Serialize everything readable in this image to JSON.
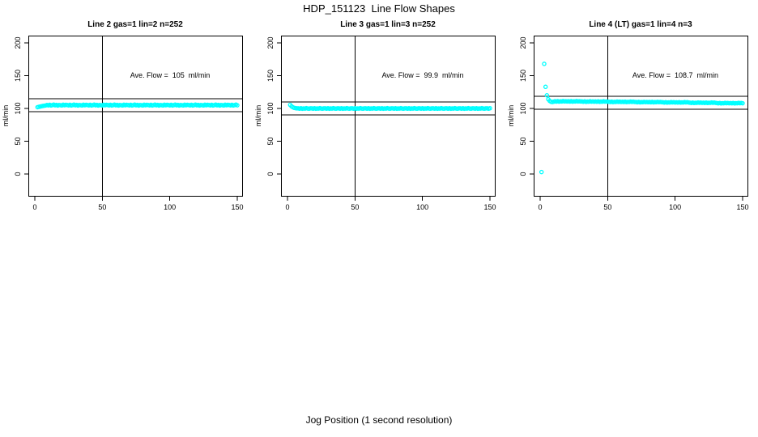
{
  "title": "HDP_151123  Line Flow Shapes",
  "xlabel": "Jog Position (1 second resolution)",
  "chart_data": {
    "type": "scatter",
    "title": "HDP_151123  Line Flow Shapes",
    "xlabel": "Jog Position (1 second resolution)",
    "ylabel": "ml/min",
    "xlim": [
      0,
      150
    ],
    "ylim": [
      0,
      200
    ],
    "x_ticks": [
      0,
      50,
      100,
      150
    ],
    "y_ticks": [
      0,
      50,
      100,
      150,
      200
    ],
    "grid": false,
    "point_color": "#00ffff",
    "line_color": "#000000",
    "vline_x": 50,
    "panels": [
      {
        "name": "line2",
        "title": "Line 2 gas=1 lin=2 n=252",
        "annotation": "Ave. Flow =  105  ml/min",
        "ave_flow_ml_min": 105,
        "n": 252,
        "gas": 1,
        "lin": 2,
        "ref_lines": [
          115,
          95
        ],
        "outliers": [],
        "band": {
          "x_start": 2,
          "x_step": 1,
          "y": [
            101.9,
            102.4,
            102.9,
            103.4,
            103.8,
            104.2,
            104.5,
            105.2,
            104.7,
            105.6,
            104.5,
            105.1,
            105.8,
            104.8,
            105.4,
            104.4,
            105.3,
            105.0,
            104.6,
            105.7,
            104.9,
            105.5,
            105.2,
            104.7,
            105.6,
            104.5,
            105.1,
            105.8,
            104.8,
            105.4,
            104.4,
            105.3,
            105.0,
            104.6,
            105.7,
            104.9,
            105.5,
            105.2,
            104.7,
            105.6,
            104.5,
            105.1,
            105.8,
            104.8,
            105.4,
            104.4,
            105.3,
            105.0,
            104.6,
            105.7,
            104.9,
            105.5,
            105.2,
            104.7,
            105.6,
            104.5,
            105.1,
            105.8,
            104.8,
            105.4,
            104.4,
            105.3,
            105.0,
            104.6,
            105.7,
            104.9,
            105.5,
            105.2,
            104.7,
            105.6,
            104.5,
            105.1,
            105.8,
            104.8,
            105.4,
            104.4,
            105.3,
            105.0,
            104.6,
            105.7,
            104.9,
            105.5,
            105.2,
            104.7,
            105.6,
            104.5,
            105.1,
            105.8,
            104.8,
            105.4,
            104.4,
            105.3,
            105.0,
            104.6,
            105.7,
            104.9,
            105.5,
            105.2,
            104.7,
            105.6,
            104.5,
            105.1,
            105.8,
            104.8,
            105.4,
            104.4,
            105.3,
            105.0,
            104.6,
            105.7,
            104.9,
            105.5,
            105.2,
            104.7,
            105.6,
            104.5,
            105.1,
            105.8,
            104.8,
            105.4,
            104.4,
            105.3,
            105.0,
            104.6,
            105.7,
            104.9,
            105.5,
            105.2,
            104.7,
            105.6,
            104.5,
            105.1,
            105.8,
            104.8,
            105.4,
            104.4,
            105.3,
            105.0,
            104.6,
            105.7,
            104.9,
            105.5,
            105.2,
            104.7,
            105.6,
            104.5,
            105.1,
            105.8,
            104.8
          ]
        }
      },
      {
        "name": "line3",
        "title": "Line 3 gas=1 lin=3 n=252",
        "annotation": "Ave. Flow =  99.9  ml/min",
        "ave_flow_ml_min": 99.9,
        "n": 252,
        "gas": 1,
        "lin": 3,
        "ref_lines": [
          110,
          90
        ],
        "outliers": [],
        "band": {
          "x_start": 2,
          "x_step": 1,
          "y": [
            105.4,
            103.2,
            101.8,
            100.9,
            100.4,
            100.1,
            100.1,
            99.7,
            100.3,
            99.6,
            100.0,
            99.8,
            100.4,
            99.9,
            99.7,
            100.2,
            100.1,
            99.7,
            100.3,
            99.6,
            100.0,
            99.8,
            100.4,
            99.9,
            99.7,
            100.2,
            100.1,
            99.7,
            100.3,
            99.6,
            100.0,
            99.8,
            100.4,
            99.9,
            99.7,
            100.2,
            100.1,
            99.7,
            100.3,
            99.6,
            100.0,
            99.8,
            100.4,
            99.9,
            99.7,
            100.2,
            100.1,
            99.7,
            100.3,
            99.6,
            100.0,
            99.8,
            100.4,
            99.9,
            99.7,
            100.2,
            100.1,
            99.7,
            100.3,
            99.6,
            100.0,
            99.8,
            100.4,
            99.9,
            99.7,
            100.2,
            100.1,
            99.7,
            100.3,
            99.6,
            100.0,
            99.8,
            100.4,
            99.9,
            99.7,
            100.2,
            100.1,
            99.7,
            100.3,
            99.6,
            100.0,
            99.8,
            100.4,
            99.9,
            99.7,
            100.2,
            100.1,
            99.7,
            100.3,
            99.6,
            100.0,
            99.8,
            100.4,
            99.9,
            99.7,
            100.2,
            100.1,
            99.7,
            100.3,
            99.6,
            100.0,
            99.8,
            100.4,
            99.9,
            99.7,
            100.2,
            100.1,
            99.7,
            100.3,
            99.6,
            100.0,
            99.8,
            100.4,
            99.9,
            99.7,
            100.2,
            100.1,
            99.7,
            100.3,
            99.6,
            100.0,
            99.8,
            100.4,
            99.9,
            99.7,
            100.2,
            100.1,
            99.7,
            100.3,
            99.6,
            100.0,
            99.8,
            100.4,
            99.9,
            99.7,
            100.2,
            100.1,
            99.7,
            100.3,
            99.6,
            100.0,
            99.8,
            100.4,
            99.9,
            99.7,
            100.2,
            100.1,
            99.7,
            100.3
          ]
        }
      },
      {
        "name": "line4lt",
        "title": "Line 4 (LT) gas=1 lin=4 n=3",
        "annotation": "Ave. Flow =  108.7  ml/min",
        "ave_flow_ml_min": 108.7,
        "n": 3,
        "gas": 1,
        "lin": 4,
        "ref_lines": [
          118.7,
          98.7
        ],
        "outliers": [
          [
            1,
            3
          ],
          [
            3,
            168
          ],
          [
            4,
            133
          ],
          [
            5,
            120
          ],
          [
            6,
            114
          ],
          [
            7,
            111.5
          ],
          [
            8,
            110.2
          ],
          [
            9,
            109.8
          ],
          [
            10,
            110.3
          ]
        ],
        "band": {
          "x_start": 11,
          "x_step": 1,
          "y": [
            110.9,
            110.5,
            111.1,
            110.4,
            110.8,
            110.6,
            111.2,
            110.7,
            111.0,
            110.6,
            110.9,
            110.5,
            111.1,
            110.4,
            110.8,
            110.6,
            111.2,
            110.7,
            111.0,
            110.6,
            110.6,
            110.2,
            110.8,
            110.1,
            110.5,
            110.3,
            110.9,
            110.4,
            110.7,
            110.3,
            110.6,
            110.2,
            110.8,
            110.1,
            110.5,
            110.3,
            110.9,
            110.4,
            110.7,
            110.3,
            110.2,
            109.8,
            110.4,
            109.7,
            110.1,
            109.9,
            110.5,
            110.0,
            110.3,
            109.9,
            110.2,
            109.8,
            110.4,
            109.7,
            110.1,
            109.9,
            110.5,
            110.0,
            110.3,
            109.9,
            109.8,
            109.4,
            110.0,
            109.3,
            109.7,
            109.5,
            110.1,
            109.6,
            109.9,
            109.5,
            109.8,
            109.4,
            110.0,
            109.3,
            109.7,
            109.5,
            110.1,
            109.6,
            109.9,
            109.5,
            109.4,
            109.0,
            109.6,
            108.9,
            109.3,
            109.1,
            109.7,
            109.2,
            109.5,
            109.1,
            109.4,
            109.0,
            109.6,
            108.9,
            109.3,
            109.1,
            109.7,
            109.2,
            109.5,
            109.1,
            108.8,
            108.4,
            109.0,
            108.3,
            108.7,
            108.5,
            109.1,
            108.6,
            108.9,
            108.5,
            108.8,
            108.4,
            109.0,
            108.3,
            108.7,
            108.5,
            109.1,
            108.6,
            108.9,
            108.5,
            108.2,
            107.8,
            108.4,
            107.7,
            108.1,
            107.9,
            108.5,
            108.0,
            108.3,
            107.9,
            108.2,
            107.8,
            108.4,
            107.7,
            108.1,
            107.9,
            108.5,
            108.0,
            108.3,
            107.9
          ]
        }
      }
    ]
  }
}
